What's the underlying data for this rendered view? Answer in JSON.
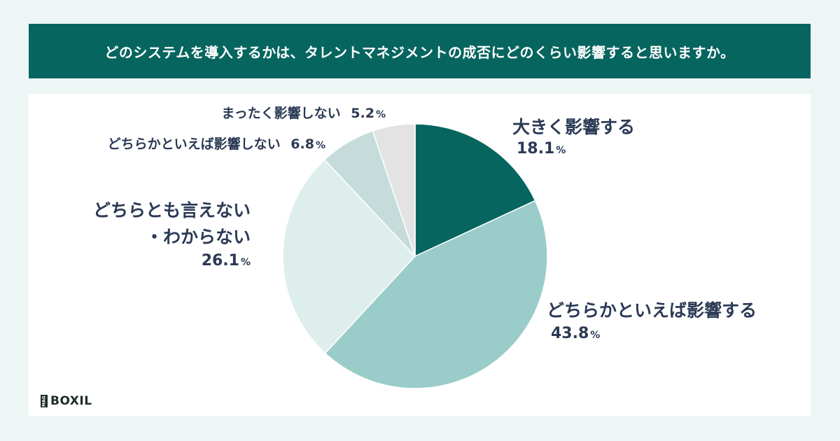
{
  "header": {
    "title": "どのシステムを導入するかは、タレントマネジメントの成否にどのくらい影響すると思いますか。"
  },
  "chart_data": {
    "type": "pie",
    "start": "top",
    "direction": "clockwise",
    "slices": [
      {
        "label_lines": [
          "大きく影響する"
        ],
        "value": 18.1,
        "display": "18.1",
        "color": "#07655f"
      },
      {
        "label_lines": [
          "どちらかといえば影響する"
        ],
        "value": 43.8,
        "display": "43.8",
        "color": "#9accc9"
      },
      {
        "label_lines": [
          "どちらとも言えない",
          "・わからない"
        ],
        "value": 26.1,
        "display": "26.1",
        "color": "#deeeed"
      },
      {
        "label_lines": [
          "どちらかといえば影響しない"
        ],
        "value": 6.8,
        "display": "6.8",
        "color": "#c5dcdb"
      },
      {
        "label_lines": [
          "まったく影響しない"
        ],
        "value": 5.2,
        "display": "5.2",
        "color": "#e3e3e3"
      }
    ],
    "unit": "%"
  },
  "labels": {
    "s0_line1": "大きく影響する",
    "s0_value": "18.1",
    "s1_line1": "どちらかといえば影響する",
    "s1_value": "43.8",
    "s2_line1": "どちらとも言えない",
    "s2_line2": "・わからない",
    "s2_value": "26.1",
    "s3_line1": "どちらかといえば影響しない",
    "s3_value": "6.8",
    "s4_line1": "まったく影響しない",
    "s4_value": "5.2",
    "unit": "%"
  },
  "logo": {
    "mark": "MAG",
    "text": "BOXIL"
  }
}
